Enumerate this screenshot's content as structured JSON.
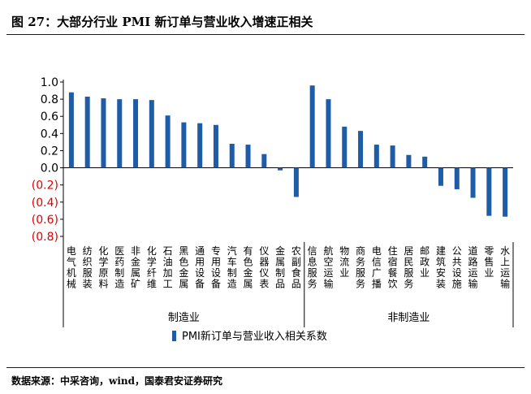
{
  "title": "图 27：大部分行业 PMI 新订单与营业收入增速正相关",
  "source": "数据来源：中采咨询，wind，国泰君安证券研究",
  "chart_data": {
    "type": "bar",
    "title": "图 27：大部分行业 PMI 新订单与营业收入增速正相关",
    "ylim": [
      -0.8,
      1.0
    ],
    "yticks": [
      1.0,
      0.8,
      0.6,
      0.4,
      0.2,
      0.0,
      -0.2,
      -0.4,
      -0.6,
      -0.8
    ],
    "ytick_labels": [
      "1.0",
      "0.8",
      "0.6",
      "0.4",
      "0.2",
      "0.0",
      "(0.2)",
      "(0.4)",
      "(0.6)",
      "(0.8)"
    ],
    "positive_tick_color": "#000000",
    "negative_tick_color": "#e00000",
    "bar_color": "#1f5ca8",
    "categories": [
      "电气机械",
      "纺织服装",
      "化学原料",
      "医药制造",
      "非金属矿",
      "化学纤维",
      "石油加工",
      "黑色金属",
      "通用设备",
      "专用设备",
      "汽车制造",
      "有色金属",
      "仪器仪表",
      "金属制品",
      "农副食品",
      "信息服务",
      "航空运输",
      "物流业",
      "商务服务",
      "电信广播",
      "住宿餐饮",
      "居民服务",
      "邮政业",
      "建筑安装",
      "公共设施",
      "道路运输",
      "零售业",
      "水上运输"
    ],
    "groups": [
      {
        "label": "制造业",
        "start": 0,
        "end": 14
      },
      {
        "label": "非制造业",
        "start": 15,
        "end": 27
      }
    ],
    "series": [
      {
        "name": "PMI新订单与营业收入相关系数",
        "values": [
          0.88,
          0.83,
          0.81,
          0.8,
          0.8,
          0.79,
          0.61,
          0.53,
          0.52,
          0.5,
          0.28,
          0.27,
          0.16,
          -0.03,
          -0.34,
          0.96,
          0.8,
          0.48,
          0.43,
          0.27,
          0.26,
          0.15,
          0.13,
          -0.21,
          -0.25,
          -0.35,
          -0.56,
          -0.57
        ]
      }
    ],
    "legend": "bottom-center"
  }
}
